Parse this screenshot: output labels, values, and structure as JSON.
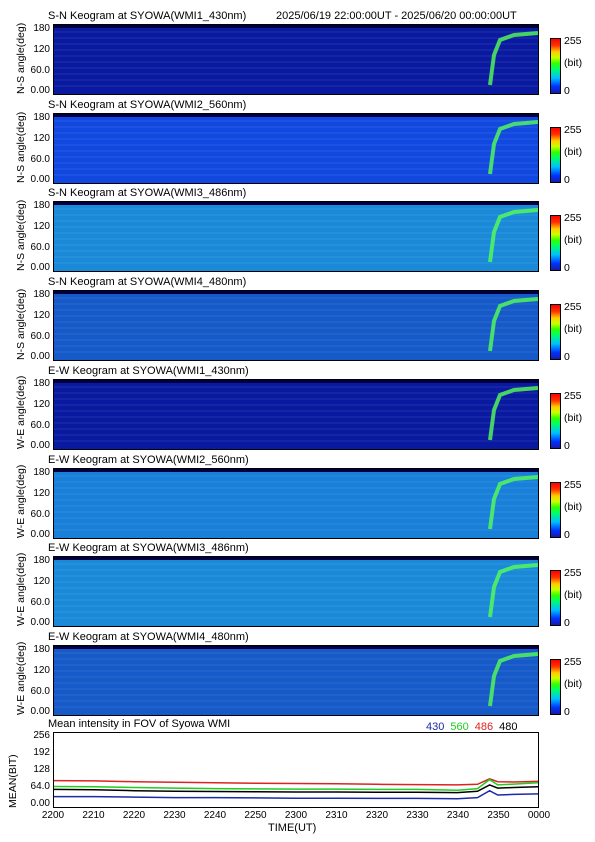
{
  "header": {
    "time_range": "2025/06/19 22:00:00UT - 2025/06/20 00:00:00UT"
  },
  "keograms": [
    {
      "title": "S-N Keogram at SYOWA(WMI1_430nm)",
      "ylabel": "N-S angle(deg)",
      "color": "#0a1aa0"
    },
    {
      "title": "S-N Keogram at SYOWA(WMI2_560nm)",
      "ylabel": "N-S angle(deg)",
      "color": "#1048e0"
    },
    {
      "title": "S-N Keogram at SYOWA(WMI3_486nm)",
      "ylabel": "N-S angle(deg)",
      "color": "#1a8ad8"
    },
    {
      "title": "S-N Keogram at SYOWA(WMI4_480nm)",
      "ylabel": "N-S angle(deg)",
      "color": "#155ac8"
    },
    {
      "title": "E-W Keogram at SYOWA(WMI1_430nm)",
      "ylabel": "W-E angle(deg)",
      "color": "#0a1aa0"
    },
    {
      "title": "E-W Keogram at SYOWA(WMI2_560nm)",
      "ylabel": "W-E angle(deg)",
      "color": "#1880d8"
    },
    {
      "title": "E-W Keogram at SYOWA(WMI3_486nm)",
      "ylabel": "W-E angle(deg)",
      "color": "#1a8ad8"
    },
    {
      "title": "E-W Keogram at SYOWA(WMI4_480nm)",
      "ylabel": "W-E angle(deg)",
      "color": "#155ac8"
    }
  ],
  "keogram_yticks": [
    "180",
    "120",
    "60.0",
    "0.00"
  ],
  "colorbar": {
    "max": "255",
    "unit": "(bit)",
    "min": "0"
  },
  "mean_panel": {
    "title": "Mean intensity in FOV of Syowa WMI",
    "ylabel": "MEAN(BIT)",
    "yticks": [
      "256",
      "192",
      "128",
      "64.0",
      "0.00"
    ]
  },
  "legend": [
    {
      "label": "430",
      "color": "#1a2aa8"
    },
    {
      "label": "560",
      "color": "#22cc22"
    },
    {
      "label": "486",
      "color": "#dd2222"
    },
    {
      "label": "480",
      "color": "#000000"
    }
  ],
  "xaxis": {
    "label": "TIME(UT)",
    "ticks": [
      "2200",
      "2210",
      "2220",
      "2230",
      "2240",
      "2250",
      "2300",
      "2310",
      "2320",
      "2330",
      "2340",
      "2350",
      "0000"
    ]
  },
  "chart_data": {
    "type": "line",
    "title": "Mean intensity in FOV of Syowa WMI",
    "xlabel": "TIME(UT)",
    "ylabel": "MEAN(BIT)",
    "x": [
      0,
      10,
      20,
      30,
      40,
      50,
      60,
      70,
      80,
      90,
      100,
      105,
      108,
      110,
      114,
      120
    ],
    "ylim": [
      0,
      256
    ],
    "series": [
      {
        "name": "486",
        "color": "#dd2222",
        "values": [
          88,
          87,
          84,
          82,
          80,
          78,
          77,
          76,
          74,
          73,
          72,
          74,
          95,
          84,
          83,
          85
        ]
      },
      {
        "name": "560",
        "color": "#22cc22",
        "values": [
          66,
          65,
          62,
          60,
          58,
          57,
          56,
          56,
          55,
          55,
          52,
          58,
          92,
          72,
          75,
          80
        ]
      },
      {
        "name": "480",
        "color": "#000000",
        "values": [
          55,
          54,
          50,
          48,
          47,
          46,
          45,
          45,
          44,
          44,
          43,
          48,
          72,
          60,
          62,
          65
        ]
      },
      {
        "name": "430",
        "color": "#1a2aa8",
        "values": [
          28,
          28,
          26,
          24,
          24,
          23,
          22,
          22,
          21,
          21,
          20,
          24,
          50,
          34,
          36,
          38
        ]
      }
    ]
  }
}
